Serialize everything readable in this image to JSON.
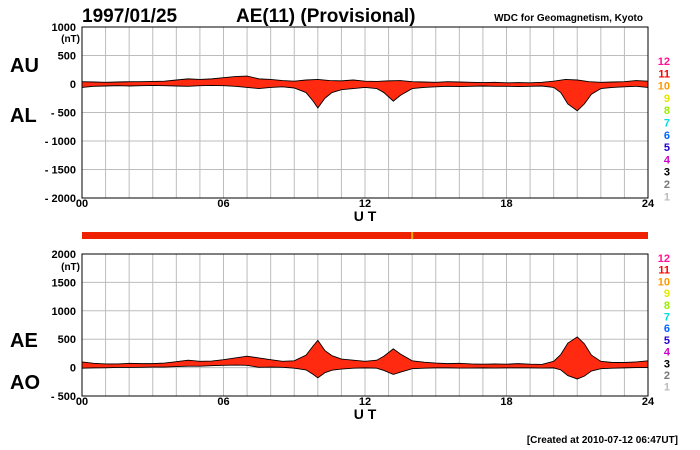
{
  "header": {
    "date": "1997/01/25",
    "title": "AE(11) (Provisional)",
    "source": "WDC for Geomagnetism, Kyoto"
  },
  "footer": {
    "created": "[Created at 2010-07-12 06:47UT]"
  },
  "colors": {
    "fill": "#ff2a0f",
    "grid": "#bdbdbd",
    "bar": "#ee2200",
    "bar_mark": "#e8b000"
  },
  "station_scale": [
    {
      "label": "12",
      "color": "#ff1493"
    },
    {
      "label": "11",
      "color": "#ff0000"
    },
    {
      "label": "10",
      "color": "#ff9900"
    },
    {
      "label": "9",
      "color": "#e6e600"
    },
    {
      "label": "8",
      "color": "#99ee00"
    },
    {
      "label": "7",
      "color": "#00dddd"
    },
    {
      "label": "6",
      "color": "#0066ff"
    },
    {
      "label": "5",
      "color": "#2200cc"
    },
    {
      "label": "4",
      "color": "#cc00cc"
    },
    {
      "label": "3",
      "color": "#000000"
    },
    {
      "label": "2",
      "color": "#777777"
    },
    {
      "label": "1",
      "color": "#bbbbbb"
    }
  ],
  "station_bar": {
    "value_label": "11",
    "marks_ut": [
      14.0
    ]
  },
  "chart_data": [
    {
      "type": "area",
      "panel": "AU/AL",
      "unit_label": "(nT)",
      "xlabel": "U T",
      "upper_label": "AU",
      "lower_label": "AL",
      "x_ticks": [
        "00",
        "06",
        "12",
        "18",
        "24"
      ],
      "y_ticks": [
        "1000",
        "500",
        "0",
        "- 500",
        "- 1000",
        "- 1500",
        "- 2000"
      ],
      "xlim": [
        0,
        24
      ],
      "ylim": [
        -2000,
        1000
      ],
      "grid": true,
      "series": [
        {
          "name": "AU",
          "x": [
            0,
            0.5,
            1,
            1.5,
            2,
            2.5,
            3,
            3.5,
            4,
            4.5,
            5,
            5.5,
            6,
            6.5,
            7,
            7.5,
            8,
            8.5,
            9,
            9.5,
            10,
            10.5,
            11,
            11.5,
            12,
            12.5,
            13,
            13.5,
            14,
            14.5,
            15,
            15.5,
            16,
            16.5,
            17,
            17.5,
            18,
            18.5,
            19,
            19.5,
            20,
            20.5,
            21,
            21.5,
            22,
            22.5,
            23,
            23.5,
            24
          ],
          "values": [
            40,
            35,
            30,
            35,
            40,
            40,
            45,
            50,
            70,
            90,
            80,
            90,
            110,
            130,
            140,
            90,
            80,
            60,
            50,
            70,
            80,
            60,
            55,
            70,
            50,
            45,
            55,
            60,
            40,
            35,
            30,
            40,
            35,
            30,
            25,
            30,
            20,
            25,
            20,
            30,
            50,
            80,
            70,
            40,
            30,
            35,
            40,
            60,
            50
          ]
        },
        {
          "name": "AL",
          "x": [
            0,
            0.5,
            1,
            1.5,
            2,
            2.5,
            3,
            3.5,
            4,
            4.5,
            5,
            5.5,
            6,
            6.5,
            7,
            7.5,
            8,
            8.5,
            9,
            9.5,
            9.8,
            10,
            10.3,
            10.6,
            11,
            11.5,
            12,
            12.5,
            12.8,
            13.2,
            13.5,
            14,
            14.5,
            15,
            15.5,
            16,
            16.5,
            17,
            17.5,
            18,
            18.5,
            19,
            19.5,
            20,
            20.3,
            20.6,
            21,
            21.3,
            21.6,
            22,
            22.5,
            23,
            23.5,
            24
          ],
          "values": [
            -60,
            -40,
            -35,
            -30,
            -35,
            -30,
            -25,
            -30,
            -35,
            -40,
            -30,
            -25,
            -30,
            -40,
            -60,
            -80,
            -60,
            -50,
            -70,
            -150,
            -300,
            -420,
            -250,
            -150,
            -100,
            -80,
            -60,
            -80,
            -150,
            -300,
            -200,
            -80,
            -60,
            -50,
            -40,
            -45,
            -40,
            -35,
            -40,
            -40,
            -45,
            -40,
            -35,
            -60,
            -150,
            -350,
            -470,
            -350,
            -180,
            -80,
            -60,
            -50,
            -40,
            -60
          ]
        }
      ]
    },
    {
      "type": "area",
      "panel": "AE/AO",
      "unit_label": "(nT)",
      "xlabel": "U T",
      "upper_label": "AE",
      "lower_label": "AO",
      "x_ticks": [
        "00",
        "06",
        "12",
        "18",
        "24"
      ],
      "y_ticks": [
        "2000",
        "1500",
        "1000",
        "500",
        "0",
        "- 500"
      ],
      "xlim": [
        0,
        24
      ],
      "ylim": [
        -500,
        2000
      ],
      "grid": true,
      "series": [
        {
          "name": "AE",
          "x": [
            0,
            0.5,
            1,
            1.5,
            2,
            2.5,
            3,
            3.5,
            4,
            4.5,
            5,
            5.5,
            6,
            6.5,
            7,
            7.5,
            8,
            8.5,
            9,
            9.5,
            9.8,
            10,
            10.3,
            10.6,
            11,
            11.5,
            12,
            12.5,
            12.8,
            13.2,
            13.5,
            14,
            14.5,
            15,
            15.5,
            16,
            16.5,
            17,
            17.5,
            18,
            18.5,
            19,
            19.5,
            20,
            20.3,
            20.6,
            21,
            21.3,
            21.6,
            22,
            22.5,
            23,
            23.5,
            24
          ],
          "values": [
            100,
            75,
            65,
            65,
            75,
            70,
            70,
            80,
            105,
            130,
            110,
            115,
            140,
            170,
            200,
            170,
            140,
            110,
            120,
            220,
            380,
            480,
            300,
            210,
            150,
            130,
            110,
            130,
            200,
            330,
            240,
            120,
            95,
            80,
            70,
            75,
            65,
            60,
            65,
            60,
            70,
            60,
            55,
            110,
            230,
            430,
            540,
            420,
            220,
            110,
            90,
            90,
            100,
            120
          ]
        },
        {
          "name": "AO",
          "x": [
            0,
            0.5,
            1,
            1.5,
            2,
            2.5,
            3,
            3.5,
            4,
            4.5,
            5,
            5.5,
            6,
            6.5,
            7,
            7.5,
            8,
            8.5,
            9,
            9.5,
            9.8,
            10,
            10.3,
            10.6,
            11,
            11.5,
            12,
            12.5,
            12.8,
            13.2,
            13.5,
            14,
            14.5,
            15,
            15.5,
            16,
            16.5,
            17,
            17.5,
            18,
            18.5,
            19,
            19.5,
            20,
            20.3,
            20.6,
            21,
            21.3,
            21.6,
            22,
            22.5,
            23,
            23.5,
            24
          ],
          "values": [
            -10,
            -5,
            -3,
            3,
            3,
            5,
            10,
            10,
            18,
            25,
            25,
            33,
            40,
            45,
            40,
            5,
            10,
            5,
            -10,
            -40,
            -120,
            -180,
            -90,
            -45,
            -25,
            -10,
            -5,
            -10,
            -50,
            -120,
            -80,
            -20,
            -10,
            -5,
            -5,
            -8,
            -8,
            -5,
            -8,
            -5,
            -5,
            -5,
            -8,
            -5,
            -40,
            -140,
            -200,
            -150,
            -60,
            -20,
            -10,
            -5,
            0,
            0
          ]
        }
      ]
    }
  ]
}
